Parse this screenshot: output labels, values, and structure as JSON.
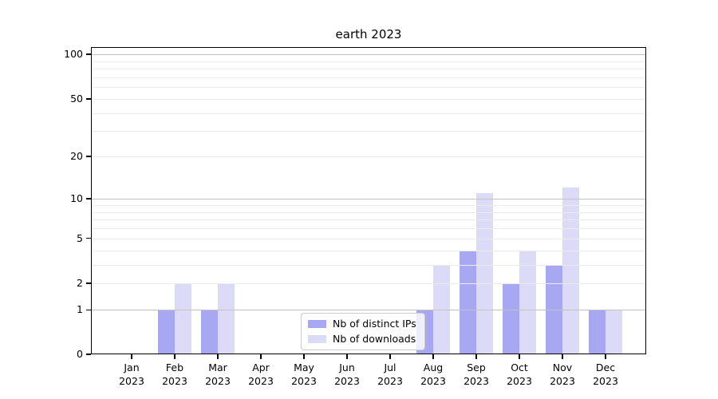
{
  "title": "earth 2023",
  "legend": {
    "items": [
      {
        "label": "Nb of distinct IPs",
        "color": "#a8a8f2"
      },
      {
        "label": "Nb of downloads",
        "color": "#dbdbf8"
      }
    ]
  },
  "axes": {
    "y_tick_labels": [
      "0",
      "1",
      "2",
      "5",
      "10",
      "20",
      "50",
      "100"
    ],
    "y_tick_values": [
      0,
      1,
      2,
      5,
      10,
      20,
      50,
      100
    ],
    "minor_grid_values": [
      2,
      3,
      4,
      5,
      6,
      7,
      8,
      9,
      20,
      30,
      40,
      50,
      60,
      70,
      80,
      90
    ],
    "major_grid_values": [
      1,
      10,
      100
    ]
  },
  "chart_data": {
    "type": "bar",
    "title": "earth 2023",
    "categories": [
      "Jan 2023",
      "Feb 2023",
      "Mar 2023",
      "Apr 2023",
      "May 2023",
      "Jun 2023",
      "Jul 2023",
      "Aug 2023",
      "Sep 2023",
      "Oct 2023",
      "Nov 2023",
      "Dec 2023"
    ],
    "series": [
      {
        "name": "Nb of distinct IPs",
        "color": "#a8a8f2",
        "values": [
          0,
          1,
          1,
          0,
          0,
          0,
          0,
          1,
          4,
          2,
          3,
          1
        ]
      },
      {
        "name": "Nb of downloads",
        "color": "#dbdbf8",
        "values": [
          0,
          2,
          2,
          0,
          0,
          0,
          0,
          3,
          11,
          4,
          12,
          1
        ]
      }
    ],
    "xlabel": "",
    "ylabel": "",
    "yscale": "log1p",
    "y_ticks": [
      0,
      1,
      2,
      5,
      10,
      20,
      50,
      100
    ],
    "ylim": [
      0,
      110
    ],
    "grid": true,
    "grid_above_bars": true,
    "legend_position": "lower center"
  }
}
